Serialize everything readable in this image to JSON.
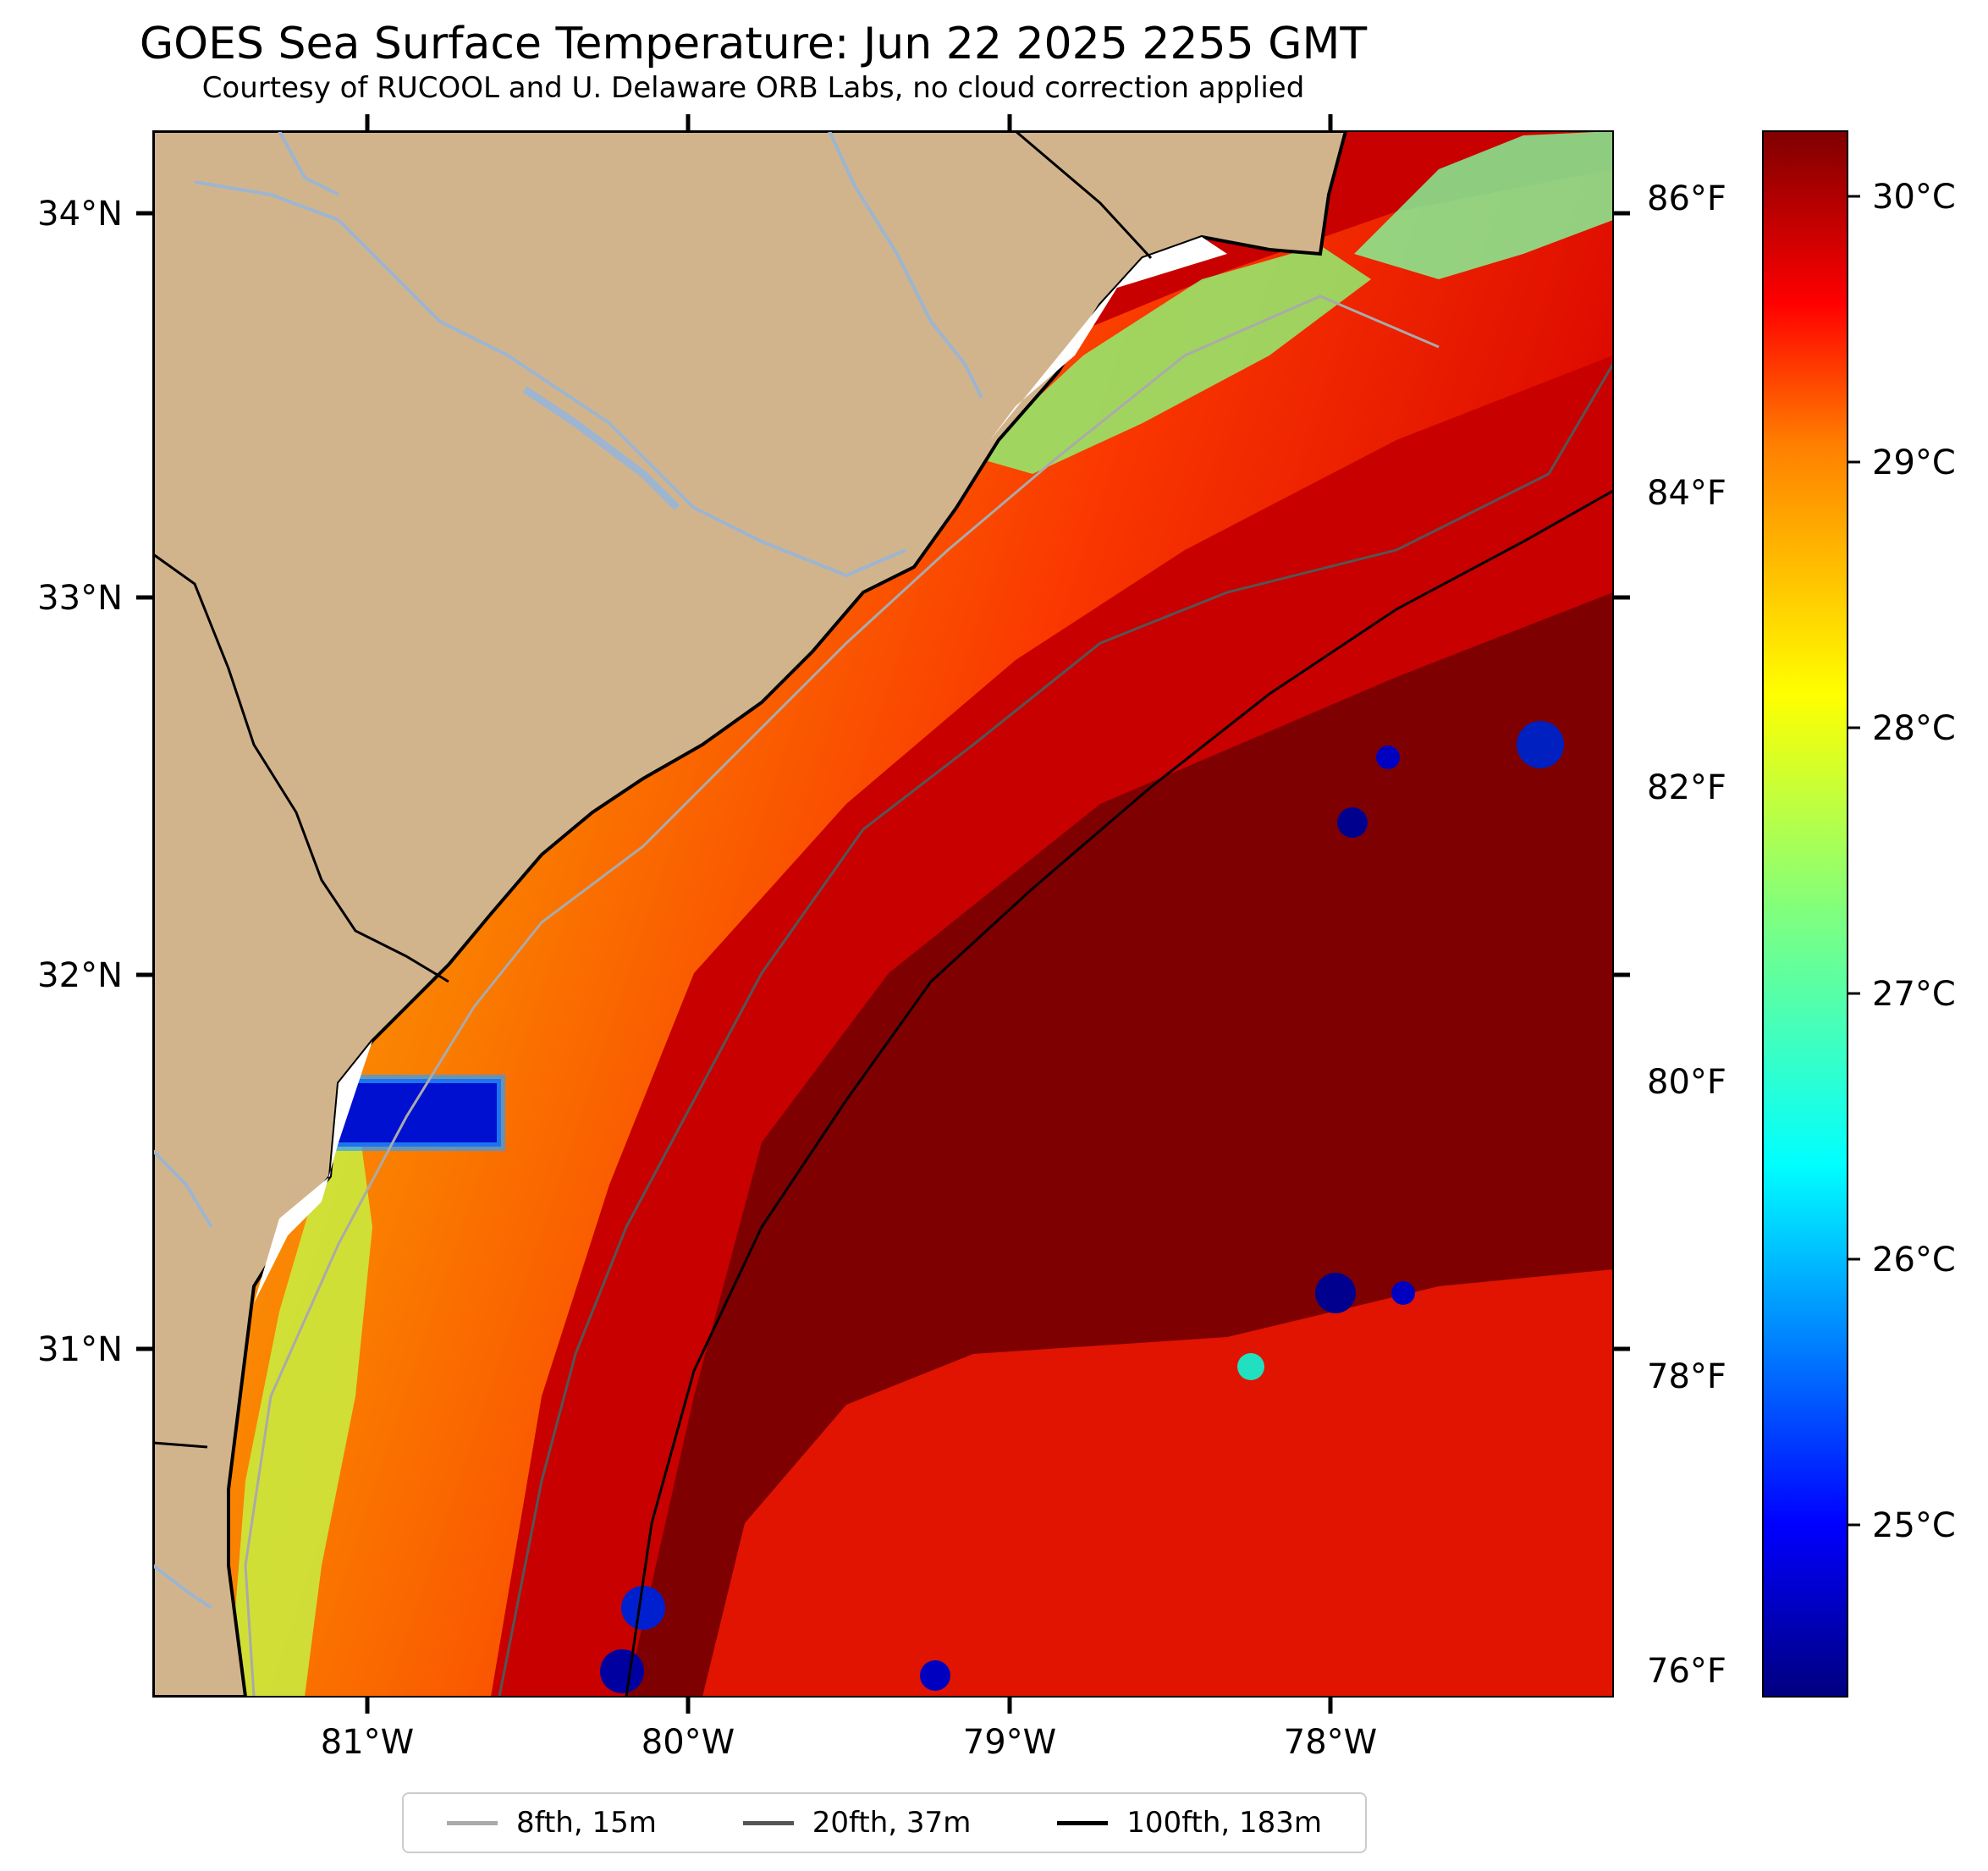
{
  "title": "GOES Sea Surface Temperature: Jun 22 2025 2255 GMT",
  "subtitle": "Courtesy of RUCOOL and U. Delaware ORB Labs, no cloud correction applied",
  "axes": {
    "lat_labels": [
      "34°N",
      "33°N",
      "32°N",
      "31°N"
    ],
    "lon_labels": [
      "81°W",
      "80°W",
      "79°W",
      "78°W"
    ],
    "fahrenheit_labels": [
      "86°F",
      "84°F",
      "82°F",
      "80°F",
      "78°F",
      "76°F"
    ],
    "celsius_labels": [
      "30°C",
      "29°C",
      "28°C",
      "27°C",
      "26°C",
      "25°C"
    ]
  },
  "colorbar": {
    "colormap": "jet",
    "colors": [
      "#00007f",
      "#0000ff",
      "#007fff",
      "#00ffff",
      "#7fff7f",
      "#ffff00",
      "#ff7f00",
      "#ff0000",
      "#7f0000"
    ]
  },
  "legend": {
    "items": [
      {
        "label": "8fth, 15m",
        "color": "#aaaaaa"
      },
      {
        "label": "20fth, 37m",
        "color": "#555555"
      },
      {
        "label": "100fth, 183m",
        "color": "#000000"
      }
    ]
  },
  "colors": {
    "land": "#d2b48c",
    "rivers": "#9db5d0",
    "ocean_warm": "#7f0000"
  }
}
